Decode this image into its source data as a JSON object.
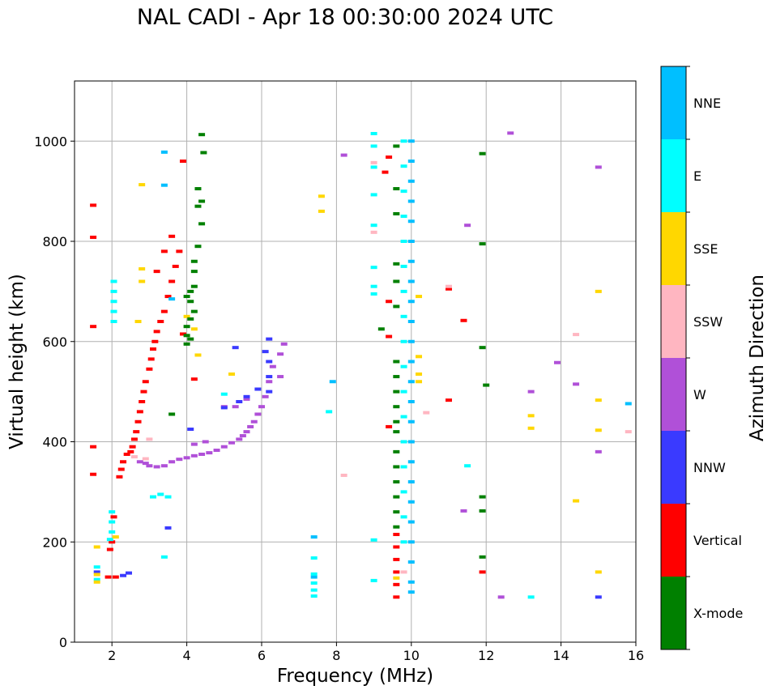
{
  "chart_data": {
    "type": "scatter",
    "title": "NAL CADI - Apr 18 00:30:00 2024 UTC",
    "xlabel": "Frequency (MHz)",
    "ylabel": "Virtual height (km)",
    "xlim": [
      1,
      16
    ],
    "ylim": [
      0,
      1120
    ],
    "xticks": [
      2,
      4,
      6,
      8,
      10,
      12,
      14,
      16
    ],
    "yticks": [
      0,
      200,
      400,
      600,
      800,
      1000
    ],
    "grid": true,
    "colorbar": {
      "label": "Azimuth Direction",
      "categories": [
        {
          "name": "X-mode",
          "color": "#008000"
        },
        {
          "name": "Vertical",
          "color": "#ff0000"
        },
        {
          "name": "NNW",
          "color": "#3a3aff"
        },
        {
          "name": "W",
          "color": "#b050d8"
        },
        {
          "name": "SSW",
          "color": "#ffb6c1"
        },
        {
          "name": "SSE",
          "color": "#ffd700"
        },
        {
          "name": "E",
          "color": "#00ffff"
        },
        {
          "name": "NNE",
          "color": "#00bfff"
        }
      ]
    },
    "series": [
      {
        "name": "W",
        "points": [
          [
            2.75,
            360
          ],
          [
            2.9,
            357
          ],
          [
            3.0,
            352
          ],
          [
            3.2,
            350
          ],
          [
            3.4,
            352
          ],
          [
            3.6,
            360
          ],
          [
            3.8,
            365
          ],
          [
            4.0,
            368
          ],
          [
            4.2,
            372
          ],
          [
            4.4,
            375
          ],
          [
            4.6,
            378
          ],
          [
            4.8,
            383
          ],
          [
            5.0,
            390
          ],
          [
            5.2,
            398
          ],
          [
            5.4,
            405
          ],
          [
            5.5,
            412
          ],
          [
            5.6,
            420
          ],
          [
            5.7,
            430
          ],
          [
            5.8,
            440
          ],
          [
            5.9,
            455
          ],
          [
            6.0,
            470
          ],
          [
            6.1,
            490
          ],
          [
            6.2,
            520
          ],
          [
            6.3,
            550
          ],
          [
            6.5,
            575
          ],
          [
            6.6,
            595
          ],
          [
            4.2,
            395
          ],
          [
            4.5,
            400
          ],
          [
            5.0,
            470
          ],
          [
            5.3,
            470
          ],
          [
            5.6,
            485
          ],
          [
            6.5,
            530
          ],
          [
            15.0,
            948
          ],
          [
            13.2,
            500
          ],
          [
            14.4,
            515
          ],
          [
            8.2,
            972
          ],
          [
            11.5,
            832
          ],
          [
            11.4,
            262
          ],
          [
            13.9,
            558
          ],
          [
            12.4,
            90
          ],
          [
            12.65,
            1016
          ],
          [
            15.0,
            380
          ]
        ]
      },
      {
        "name": "Vertical",
        "points": [
          [
            2.2,
            330
          ],
          [
            2.25,
            345
          ],
          [
            2.3,
            360
          ],
          [
            2.4,
            375
          ],
          [
            2.5,
            380
          ],
          [
            2.55,
            390
          ],
          [
            2.6,
            405
          ],
          [
            2.65,
            420
          ],
          [
            2.7,
            440
          ],
          [
            2.75,
            460
          ],
          [
            2.8,
            480
          ],
          [
            2.85,
            500
          ],
          [
            2.9,
            520
          ],
          [
            3.0,
            545
          ],
          [
            3.05,
            565
          ],
          [
            3.1,
            585
          ],
          [
            3.15,
            600
          ],
          [
            3.2,
            620
          ],
          [
            3.3,
            640
          ],
          [
            3.4,
            660
          ],
          [
            3.5,
            690
          ],
          [
            3.6,
            720
          ],
          [
            3.7,
            750
          ],
          [
            3.8,
            780
          ],
          [
            3.6,
            810
          ],
          [
            3.4,
            780
          ],
          [
            3.2,
            740
          ],
          [
            2.0,
            200
          ],
          [
            1.95,
            185
          ],
          [
            2.05,
            250
          ],
          [
            1.9,
            130
          ],
          [
            2.1,
            130
          ],
          [
            1.5,
            335
          ],
          [
            1.5,
            390
          ],
          [
            1.5,
            630
          ],
          [
            1.5,
            808
          ],
          [
            1.5,
            872
          ],
          [
            3.9,
            615
          ],
          [
            4.2,
            525
          ],
          [
            9.6,
            215
          ],
          [
            9.6,
            190
          ],
          [
            9.6,
            165
          ],
          [
            9.6,
            140
          ],
          [
            9.6,
            115
          ],
          [
            9.6,
            90
          ],
          [
            9.4,
            968
          ],
          [
            9.3,
            938
          ],
          [
            9.4,
            610
          ],
          [
            9.4,
            680
          ],
          [
            11.0,
            705
          ],
          [
            9.4,
            430
          ],
          [
            11.0,
            483
          ],
          [
            11.9,
            140
          ],
          [
            11.4,
            642
          ],
          [
            3.9,
            960
          ]
        ]
      },
      {
        "name": "NNW",
        "points": [
          [
            5.0,
            468
          ],
          [
            5.4,
            480
          ],
          [
            5.6,
            490
          ],
          [
            5.9,
            505
          ],
          [
            6.2,
            500
          ],
          [
            6.2,
            560
          ],
          [
            6.2,
            530
          ],
          [
            6.1,
            580
          ],
          [
            6.2,
            605
          ],
          [
            4.1,
            425
          ],
          [
            3.5,
            228
          ],
          [
            2.3,
            133
          ],
          [
            2.45,
            138
          ],
          [
            15.0,
            90
          ],
          [
            5.3,
            588
          ],
          [
            1.6,
            140
          ]
        ]
      },
      {
        "name": "NNE",
        "points": [
          [
            10.0,
            1000
          ],
          [
            10.0,
            960
          ],
          [
            10.0,
            920
          ],
          [
            10.0,
            880
          ],
          [
            10.0,
            840
          ],
          [
            10.0,
            800
          ],
          [
            10.0,
            760
          ],
          [
            10.0,
            720
          ],
          [
            10.0,
            680
          ],
          [
            10.0,
            640
          ],
          [
            10.0,
            600
          ],
          [
            10.0,
            560
          ],
          [
            10.0,
            520
          ],
          [
            10.0,
            480
          ],
          [
            10.0,
            440
          ],
          [
            10.0,
            400
          ],
          [
            10.0,
            360
          ],
          [
            10.0,
            320
          ],
          [
            10.0,
            280
          ],
          [
            10.0,
            240
          ],
          [
            10.0,
            200
          ],
          [
            10.0,
            160
          ],
          [
            10.0,
            120
          ],
          [
            10.0,
            100
          ],
          [
            7.9,
            520
          ],
          [
            3.4,
            978
          ],
          [
            3.6,
            685
          ],
          [
            15.8,
            476
          ],
          [
            3.4,
            912
          ],
          [
            7.4,
            130
          ],
          [
            7.4,
            210
          ]
        ]
      },
      {
        "name": "E",
        "points": [
          [
            2.05,
            720
          ],
          [
            2.05,
            700
          ],
          [
            2.05,
            680
          ],
          [
            2.05,
            660
          ],
          [
            2.05,
            640
          ],
          [
            2.0,
            260
          ],
          [
            2.0,
            240
          ],
          [
            2.0,
            220
          ],
          [
            1.95,
            205
          ],
          [
            1.6,
            150
          ],
          [
            1.6,
            125
          ],
          [
            3.1,
            290
          ],
          [
            3.3,
            295
          ],
          [
            3.5,
            290
          ],
          [
            9.8,
            1000
          ],
          [
            9.8,
            950
          ],
          [
            9.8,
            900
          ],
          [
            9.8,
            850
          ],
          [
            9.8,
            800
          ],
          [
            9.8,
            750
          ],
          [
            9.8,
            700
          ],
          [
            9.8,
            650
          ],
          [
            9.8,
            600
          ],
          [
            9.8,
            550
          ],
          [
            9.8,
            500
          ],
          [
            9.8,
            450
          ],
          [
            9.8,
            400
          ],
          [
            9.8,
            350
          ],
          [
            9.8,
            300
          ],
          [
            9.8,
            250
          ],
          [
            9.8,
            200
          ],
          [
            9.0,
            1015
          ],
          [
            9.0,
            990
          ],
          [
            9.0,
            948
          ],
          [
            9.0,
            893
          ],
          [
            9.0,
            832
          ],
          [
            9.0,
            748
          ],
          [
            9.0,
            710
          ],
          [
            9.0,
            695
          ],
          [
            9.0,
            204
          ],
          [
            9.0,
            123
          ],
          [
            7.4,
            168
          ],
          [
            7.4,
            136
          ],
          [
            7.4,
            118
          ],
          [
            7.4,
            104
          ],
          [
            7.4,
            92
          ],
          [
            7.8,
            460
          ],
          [
            11.5,
            352
          ],
          [
            13.2,
            90
          ],
          [
            3.4,
            170
          ],
          [
            5.0,
            495
          ]
        ]
      },
      {
        "name": "SSE",
        "points": [
          [
            7.6,
            890
          ],
          [
            7.6,
            860
          ],
          [
            10.2,
            690
          ],
          [
            10.2,
            570
          ],
          [
            10.2,
            535
          ],
          [
            10.2,
            520
          ],
          [
            2.8,
            745
          ],
          [
            2.8,
            720
          ],
          [
            2.7,
            640
          ],
          [
            2.1,
            210
          ],
          [
            1.6,
            190
          ],
          [
            1.6,
            135
          ],
          [
            1.6,
            120
          ],
          [
            15.0,
            700
          ],
          [
            15.0,
            483
          ],
          [
            15.0,
            423
          ],
          [
            15.0,
            140
          ],
          [
            13.2,
            452
          ],
          [
            13.2,
            427
          ],
          [
            14.4,
            282
          ],
          [
            4.3,
            573
          ],
          [
            2.8,
            913
          ],
          [
            5.2,
            535
          ],
          [
            4.2,
            625
          ],
          [
            4.0,
            650
          ],
          [
            9.6,
            128
          ]
        ]
      },
      {
        "name": "SSW",
        "points": [
          [
            9.0,
            957
          ],
          [
            9.0,
            818
          ],
          [
            9.8,
            140
          ],
          [
            10.4,
            458
          ],
          [
            8.2,
            333
          ],
          [
            11.0,
            710
          ],
          [
            14.4,
            614
          ],
          [
            15.8,
            420
          ],
          [
            2.9,
            366
          ],
          [
            2.6,
            370
          ],
          [
            3.0,
            405
          ]
        ]
      },
      {
        "name": "X-mode",
        "points": [
          [
            4.4,
            1013
          ],
          [
            4.45,
            977
          ],
          [
            4.3,
            905
          ],
          [
            4.4,
            880
          ],
          [
            4.3,
            870
          ],
          [
            4.4,
            835
          ],
          [
            4.3,
            790
          ],
          [
            4.2,
            760
          ],
          [
            4.2,
            740
          ],
          [
            4.2,
            710
          ],
          [
            4.1,
            700
          ],
          [
            4.0,
            690
          ],
          [
            4.1,
            680
          ],
          [
            4.2,
            660
          ],
          [
            4.1,
            645
          ],
          [
            4.0,
            630
          ],
          [
            4.0,
            612
          ],
          [
            4.0,
            595
          ],
          [
            4.1,
            605
          ],
          [
            9.2,
            625
          ],
          [
            9.6,
            990
          ],
          [
            9.6,
            905
          ],
          [
            9.6,
            855
          ],
          [
            9.6,
            755
          ],
          [
            9.6,
            720
          ],
          [
            9.6,
            670
          ],
          [
            9.6,
            560
          ],
          [
            9.6,
            530
          ],
          [
            9.6,
            500
          ],
          [
            9.6,
            470
          ],
          [
            9.6,
            440
          ],
          [
            9.6,
            420
          ],
          [
            9.6,
            380
          ],
          [
            9.6,
            350
          ],
          [
            9.6,
            320
          ],
          [
            9.6,
            290
          ],
          [
            9.6,
            260
          ],
          [
            9.6,
            230
          ],
          [
            11.9,
            975
          ],
          [
            11.9,
            795
          ],
          [
            11.9,
            588
          ],
          [
            12.0,
            513
          ],
          [
            11.9,
            290
          ],
          [
            11.9,
            262
          ],
          [
            11.9,
            170
          ],
          [
            3.6,
            455
          ]
        ]
      }
    ]
  }
}
